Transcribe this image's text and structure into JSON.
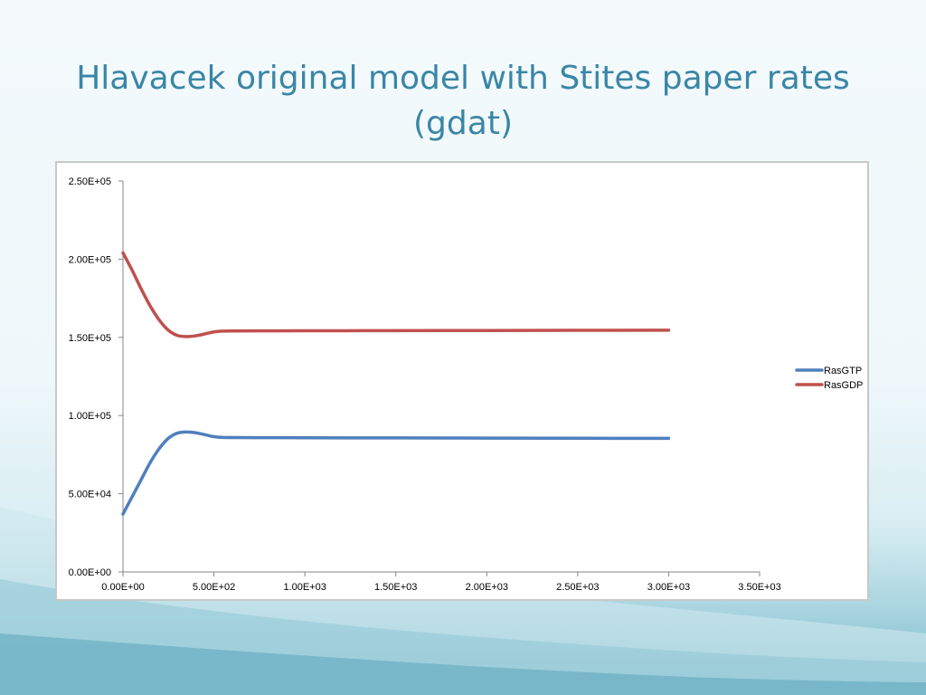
{
  "slide": {
    "title": "Hlavacek original model with Stites paper rates (gdat)"
  },
  "chart_data": {
    "type": "line",
    "title": "",
    "xlabel": "",
    "ylabel": "",
    "xlim": [
      0,
      3500
    ],
    "ylim": [
      0,
      250000
    ],
    "x_ticks": [
      "0.00E+00",
      "5.00E+02",
      "1.00E+03",
      "1.50E+03",
      "2.00E+03",
      "2.50E+03",
      "3.00E+03",
      "3.50E+03"
    ],
    "y_ticks": [
      "0.00E+00",
      "5.00E+04",
      "1.00E+05",
      "1.50E+05",
      "2.00E+05",
      "2.50E+05"
    ],
    "x_tick_values": [
      0,
      500,
      1000,
      1500,
      2000,
      2500,
      3000,
      3500
    ],
    "y_tick_values": [
      0,
      50000,
      100000,
      150000,
      200000,
      250000
    ],
    "grid": false,
    "legend_position": "right",
    "series": [
      {
        "name": "RasGTP",
        "color": "#4f7fbe",
        "x": [
          0,
          50,
          100,
          150,
          200,
          250,
          300,
          350,
          400,
          450,
          500,
          550,
          600,
          800,
          1000,
          1500,
          2000,
          2500,
          3000
        ],
        "y": [
          37000,
          48000,
          59000,
          70000,
          79000,
          85500,
          88800,
          89500,
          89000,
          87800,
          86500,
          86000,
          85900,
          85850,
          85800,
          85700,
          85600,
          85500,
          85400
        ]
      },
      {
        "name": "RasGDP",
        "color": "#c0504d",
        "x": [
          0,
          50,
          100,
          150,
          200,
          250,
          300,
          350,
          400,
          450,
          500,
          550,
          600,
          800,
          1000,
          1500,
          2000,
          2500,
          3000
        ],
        "y": [
          204000,
          193000,
          181000,
          170000,
          161000,
          154500,
          151200,
          150500,
          151000,
          152200,
          153500,
          154000,
          154100,
          154150,
          154200,
          154300,
          154400,
          154500,
          154600
        ]
      }
    ]
  }
}
